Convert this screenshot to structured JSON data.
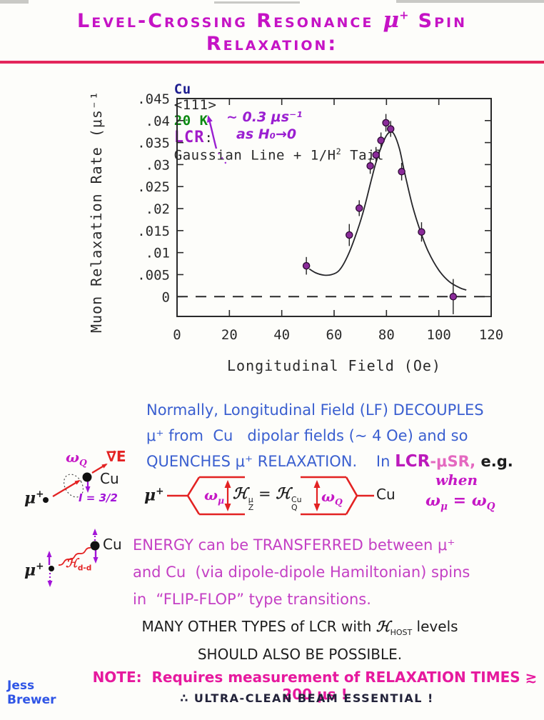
{
  "title": {
    "part1": "Level-Crossing Resonance",
    "mu": "μ",
    "mu_sup": "+",
    "part2": "Spin Relaxation:"
  },
  "chart_header": {
    "cu": "Cu",
    "orient": "<111>",
    "temp": "20 K",
    "lcr": "LCR",
    "colon": ":",
    "gauss": "Gaussian Line + 1/H",
    "sup2": "2",
    "tail": " Tail"
  },
  "chart_data": {
    "type": "scatter",
    "title": "Cu <111> 20 K LCR: Gaussian Line + 1/H² Tail",
    "xlabel": "Longitudinal Field (Oe)",
    "ylabel": "Muon Relaxation Rate (μs⁻¹)",
    "xlim": [
      0,
      120
    ],
    "ylim": [
      -0.0045,
      0.045
    ],
    "xticks": [
      0,
      20,
      40,
      60,
      80,
      100,
      120
    ],
    "yticks": [
      0,
      0.005,
      0.01,
      0.015,
      0.02,
      0.025,
      0.03,
      0.035,
      0.04,
      0.045
    ],
    "ytick_labels": [
      "0",
      ".005",
      ".01",
      ".015",
      ".02",
      ".025",
      ".03",
      ".035",
      ".04",
      ".045"
    ],
    "grid": false,
    "zero_line_dashed": true,
    "annotation": {
      "line1": "~ 0.3 μs⁻¹",
      "line2": "as H₀→0"
    },
    "points": [
      {
        "x": 49.4,
        "y": 0.007,
        "err": 0.002
      },
      {
        "x": 65.8,
        "y": 0.014,
        "err": 0.0025
      },
      {
        "x": 69.6,
        "y": 0.0201,
        "err": 0.0018
      },
      {
        "x": 73.8,
        "y": 0.0297,
        "err": 0.0018
      },
      {
        "x": 76.0,
        "y": 0.0322,
        "err": 0.0018
      },
      {
        "x": 77.9,
        "y": 0.0355,
        "err": 0.0018
      },
      {
        "x": 79.8,
        "y": 0.0395,
        "err": 0.002
      },
      {
        "x": 81.6,
        "y": 0.0381,
        "err": 0.0018
      },
      {
        "x": 85.8,
        "y": 0.0284,
        "err": 0.002
      },
      {
        "x": 93.4,
        "y": 0.0147,
        "err": 0.0022
      },
      {
        "x": 105.5,
        "y": 0.0,
        "err": 0.004
      }
    ],
    "curve": [
      [
        50.5,
        0.0063
      ],
      [
        53,
        0.0054
      ],
      [
        56,
        0.0049
      ],
      [
        59,
        0.005
      ],
      [
        62,
        0.006
      ],
      [
        65,
        0.009
      ],
      [
        68,
        0.0135
      ],
      [
        71,
        0.019
      ],
      [
        74,
        0.026
      ],
      [
        76,
        0.0305
      ],
      [
        78,
        0.034
      ],
      [
        80,
        0.0366
      ],
      [
        81.5,
        0.0374
      ],
      [
        83,
        0.0368
      ],
      [
        85,
        0.0335
      ],
      [
        87,
        0.028
      ],
      [
        90,
        0.0205
      ],
      [
        93,
        0.0148
      ],
      [
        96,
        0.0102
      ],
      [
        100,
        0.006
      ],
      [
        104,
        0.0034
      ],
      [
        108,
        0.002
      ],
      [
        110.5,
        0.0015
      ]
    ]
  },
  "para1": {
    "line1": "Normally, Longitudinal Field (LF) DECOUPLES",
    "line2": "μ⁺ from  Cu   dipolar fields (~ 4 Oe) and so",
    "line3a": "QUENCHES μ⁺ RELAXATION.    ",
    "line3b": "In ",
    "line3c": "LCR",
    "line3d": "-μSR,",
    "line3e": " e.g."
  },
  "diagram1": {
    "mu": "μ",
    "mu_sup": "+",
    "omega": "ω",
    "omega_sub": "Q",
    "grad": "∇⃗E",
    "cu": "Cu",
    "spin": "I = 3/2"
  },
  "diagram2": {
    "mu": "μ",
    "mu_sup": "+",
    "cu": "Cu",
    "ham": "ℋ",
    "ham_sub": "d-d"
  },
  "level_diagram": {
    "mu": "μ",
    "mu_sup": "+",
    "omega1": "ω",
    "omega1_sub": "μ",
    "h1": "ℋ",
    "h1_sup": "μ",
    "h1_sub": "Z",
    "eq": "=",
    "h2": "ℋ",
    "h2_sup": "Cu",
    "h2_sub": "Q",
    "omega2": "ω",
    "omega2_sub": "Q",
    "cu": "Cu"
  },
  "when_text": {
    "when": "when",
    "omega1": "ω",
    "omega1_sub": "μ",
    "eq": " = ",
    "omega2": "ω",
    "omega2_sub": "Q"
  },
  "para2": {
    "line1": "ENERGY can be TRANSFERRED between μ⁺",
    "line2": "and Cu  (via dipole-dipole Hamiltonian) spins",
    "line3": "in  “FLIP-FLOP” type transitions."
  },
  "para3": {
    "line1a": "MANY OTHER TYPES of LCR with ",
    "ham": "ℋ",
    "ham_sub": "HOST",
    "line1b": " levels",
    "line2": "SHOULD ALSO BE POSSIBLE."
  },
  "note": {
    "line1": "NOTE:  Requires measurement of RELAXATION TIMES ≳ 200 μs !",
    "line2": "∴ ULTRA-CLEAN BEAM ESSENTIAL !"
  },
  "signature": {
    "line1": "Jess",
    "line2": "Brewer"
  },
  "colors": {
    "title_magenta": "#C513C5",
    "underline_red": "#E3265B",
    "header_navy": "#1d1d90",
    "header_green": "#0c8a12",
    "lcr_purple": "#A21CC9",
    "annotation_purple": "#9A1FD1",
    "point_fill": "#8B2B9A",
    "blue_text": "#3A5FD0",
    "magenta_text": "#C43FC4",
    "diagram_red": "#E32222",
    "diagram_purple": "#A214D8",
    "note_pink": "#E6199E",
    "signature_blue": "#2F55E6"
  }
}
